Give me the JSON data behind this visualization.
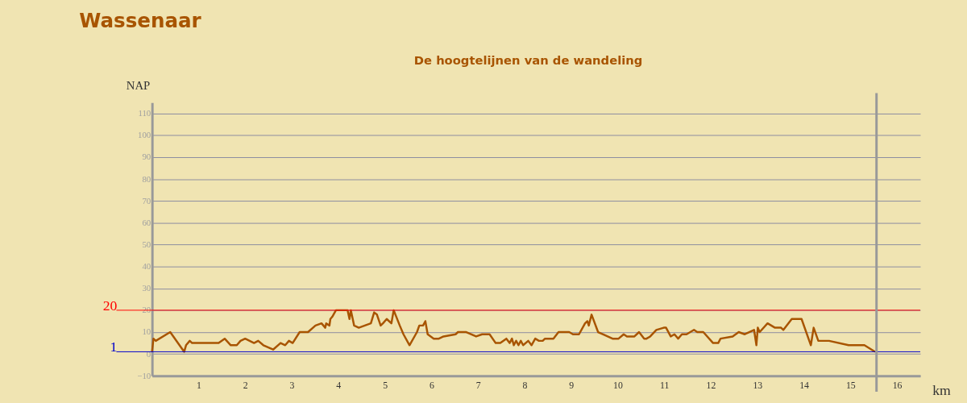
{
  "chart_data": {
    "type": "line",
    "title": "Wassenaar",
    "subtitle": "De hoogtelijnen van de wandeling",
    "xlabel": "km",
    "ylabel": "NAP",
    "series": [
      {
        "color": "#a85400",
        "x": [
          0,
          0.03,
          0.08,
          0.39,
          0.69,
          0.73,
          0.81,
          0.86,
          1.43,
          1.56,
          1.69,
          1.82,
          1.9,
          2.0,
          2.19,
          2.28,
          2.39,
          2.6,
          2.76,
          2.86,
          2.94,
          3.02,
          3.17,
          3.35,
          3.51,
          3.64,
          3.72,
          3.74,
          3.81,
          3.83,
          3.87,
          3.95,
          4.2,
          4.24,
          4.27,
          4.34,
          4.44,
          4.7,
          4.77,
          4.83,
          4.91,
          4.96,
          5.04,
          5.14,
          5.19,
          5.32,
          5.4,
          5.53,
          5.69,
          5.74,
          5.82,
          5.87,
          5.92,
          6.05,
          6.16,
          6.26,
          6.52,
          6.57,
          6.75,
          6.96,
          7.09,
          7.25,
          7.38,
          7.48,
          7.61,
          7.68,
          7.73,
          7.77,
          7.82,
          7.87,
          7.92,
          7.97,
          8.08,
          8.15,
          8.23,
          8.31,
          8.39,
          8.44,
          8.62,
          8.73,
          8.96,
          9.04,
          9.17,
          9.3,
          9.35,
          9.38,
          9.44,
          9.58,
          9.68,
          9.89,
          10.02,
          10.13,
          10.2,
          10.36,
          10.46,
          10.57,
          10.62,
          10.7,
          10.83,
          10.99,
          11.04,
          11.14,
          11.22,
          11.3,
          11.38,
          11.48,
          11.64,
          11.71,
          11.84,
          12.05,
          12.16,
          12.21,
          12.47,
          12.6,
          12.73,
          12.93,
          12.98,
          13.01,
          13.05,
          13.22,
          13.38,
          13.51,
          13.56,
          13.74,
          13.95,
          14.15,
          14.21,
          14.31,
          14.36,
          14.54,
          14.96,
          15.3,
          15.53
        ],
        "values": [
          1,
          7,
          6,
          10,
          1,
          4,
          6,
          5,
          5,
          7,
          4,
          4,
          6,
          7,
          5,
          6,
          4,
          2,
          5,
          4,
          6,
          5,
          10,
          10,
          13,
          14,
          12,
          14,
          13,
          16,
          17,
          20,
          20,
          16,
          20,
          13,
          12,
          14,
          19,
          18,
          13,
          14,
          16,
          14,
          20,
          13,
          9,
          4,
          10,
          13,
          13,
          15,
          9,
          7,
          7,
          8,
          9,
          10,
          10,
          8,
          9,
          9,
          5,
          5,
          7,
          5,
          7,
          4,
          6,
          4,
          6,
          4,
          6,
          4,
          7,
          6,
          6,
          7,
          7,
          10,
          10,
          9,
          9,
          14,
          15,
          13,
          18,
          10,
          9,
          7,
          7,
          9,
          8,
          8,
          10,
          7,
          7,
          8,
          11,
          12,
          12,
          8,
          9,
          7,
          9,
          9,
          11,
          10,
          10,
          5,
          5,
          7,
          8,
          10,
          9,
          11,
          4,
          12,
          10,
          14,
          12,
          12,
          11,
          16,
          16,
          4,
          12,
          6,
          6,
          6,
          4,
          4,
          1
        ]
      }
    ],
    "xlim": [
      0,
      16.5
    ],
    "xticks": [
      1,
      2,
      3,
      4,
      5,
      6,
      7,
      8,
      9,
      10,
      11,
      12,
      13,
      14,
      15,
      16
    ],
    "ylim": [
      -10,
      115
    ],
    "yticks": [
      -10,
      0,
      10,
      20,
      30,
      40,
      50,
      60,
      70,
      80,
      90,
      100,
      110
    ],
    "grid": "y",
    "marker": "none",
    "line_style": "solid",
    "ref_lines": [
      {
        "axis": "y",
        "value": 20,
        "label": "20",
        "color": "#ff0000"
      },
      {
        "axis": "y",
        "value": 1,
        "label": "1",
        "color": "#0000cc"
      },
      {
        "axis": "x",
        "value": 15.56,
        "label": null,
        "color": "#999999"
      }
    ]
  }
}
